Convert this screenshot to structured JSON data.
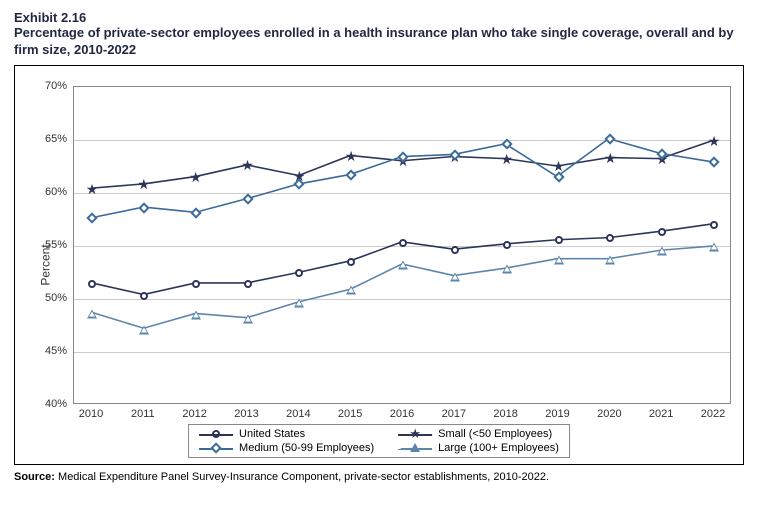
{
  "header": {
    "exhibit": "Exhibit 2.16",
    "title": "Percentage of private-sector employees enrolled in a health insurance plan who take single coverage, overall and by firm size, 2010-2022"
  },
  "chart": {
    "type": "line",
    "ylabel": "Percent",
    "ylim": [
      40,
      70
    ],
    "ytick_step": 5,
    "ytick_suffix": "%",
    "years": [
      2010,
      2011,
      2012,
      2013,
      2014,
      2015,
      2016,
      2017,
      2018,
      2019,
      2020,
      2021,
      2022
    ],
    "background_color": "#ffffff",
    "grid_color": "#cccccc",
    "axis_color": "#888888",
    "series": [
      {
        "key": "us",
        "label": "United States",
        "color": "#2c3558",
        "marker": "circle",
        "values": [
          51.4,
          50.3,
          51.4,
          51.4,
          52.4,
          53.5,
          55.3,
          54.6,
          55.1,
          55.5,
          55.7,
          56.3,
          57.0
        ]
      },
      {
        "key": "small",
        "label": "Small (<50 Employees)",
        "color": "#2c3558",
        "marker": "star",
        "values": [
          60.4,
          60.8,
          61.5,
          62.6,
          61.6,
          63.5,
          63.0,
          63.4,
          63.2,
          62.5,
          63.3,
          63.2,
          64.9
        ]
      },
      {
        "key": "medium",
        "label": "Medium (50-99 Employees)",
        "color": "#3b6a99",
        "marker": "diamond",
        "values": [
          57.6,
          58.6,
          58.1,
          59.4,
          60.8,
          61.7,
          63.4,
          63.6,
          64.6,
          61.5,
          65.1,
          63.7,
          62.9
        ]
      },
      {
        "key": "large",
        "label": "Large (100+ Employees)",
        "color": "#5d85ac",
        "marker": "triangle",
        "values": [
          48.6,
          47.1,
          48.5,
          48.1,
          49.6,
          50.8,
          53.2,
          52.1,
          52.8,
          53.7,
          53.7,
          54.5,
          54.9
        ]
      }
    ]
  },
  "source": {
    "label": "Source:",
    "text": " Medical Expenditure Panel Survey-Insurance Component, private-sector establishments, 2010-2022."
  }
}
